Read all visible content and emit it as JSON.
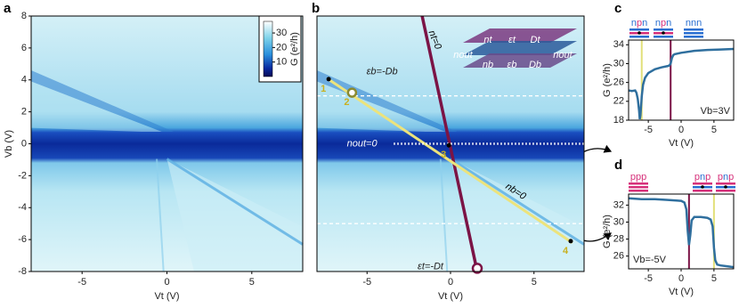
{
  "chart_data": [
    {
      "type": "heatmap",
      "panel": "a",
      "xlabel": "Vt (V)",
      "ylabel": "Vb (V)",
      "xlim": [
        -8,
        8
      ],
      "ylim": [
        -8,
        8
      ],
      "xticks": [
        -5,
        0,
        5
      ],
      "yticks": [
        -8,
        -6,
        -4,
        -2,
        0,
        2,
        4,
        6,
        8
      ],
      "colorbar": {
        "label": "G (e²/h)",
        "lim": [
          0,
          38
        ],
        "ticks": [
          10,
          20,
          30
        ]
      }
    },
    {
      "type": "heatmap",
      "panel": "b",
      "xlabel": "Vt (V)",
      "xlim": [
        -8,
        8
      ],
      "ylim": [
        -8,
        8
      ],
      "xticks": [
        -5,
        0,
        5
      ],
      "series": [
        {
          "name": "nt=0",
          "color": "#7b1446",
          "x": [
            -1.7,
            1.6
          ],
          "values": [
            8,
            -8
          ]
        },
        {
          "name": "nb=0",
          "color": "#ece37c",
          "x": [
            -7.4,
            7.3
          ],
          "values": [
            4.1,
            -6.2
          ]
        },
        {
          "name": "nout=0",
          "color": "#ffffff",
          "x": [
            -3.4,
            8
          ],
          "values": [
            0,
            0
          ]
        }
      ],
      "hlines": [
        3,
        -5
      ],
      "points": [
        {
          "label": "1",
          "x": -7.3,
          "y": 4.05,
          "marker": "dot"
        },
        {
          "label": "2",
          "x": -5.9,
          "y": 3.2,
          "marker": "ring"
        },
        {
          "label": "3",
          "x": -0.1,
          "y": -0.1,
          "marker": "dot"
        },
        {
          "label": "4",
          "x": 7.2,
          "y": -6.1,
          "marker": "dot"
        }
      ],
      "rings": [
        {
          "x": 1.6,
          "y": -7.8,
          "color": "#7b1446"
        }
      ],
      "annotations": [
        "εb=-Db",
        "εt=-Dt"
      ],
      "inset_labels": [
        "nt",
        "εt",
        "Dt",
        "nout",
        "nb",
        "εb",
        "Db",
        "nout"
      ]
    },
    {
      "type": "line",
      "panel": "c",
      "xlabel": "Vt (V)",
      "ylabel": "G (e²/h)",
      "xlim": [
        -8,
        8
      ],
      "ylim": [
        18,
        35
      ],
      "xticks": [
        -5,
        0,
        5
      ],
      "yticks": [
        18,
        22,
        26,
        30,
        34
      ],
      "annotation": "Vb=3V",
      "vlines": [
        {
          "x": -6.0,
          "color": "#e2e07a"
        },
        {
          "x": -1.6,
          "color": "#7b1446"
        }
      ],
      "series": [
        {
          "color": "#2f6f9e",
          "x": [
            -8,
            -7.5,
            -7,
            -6.8,
            -6.6,
            -6.4,
            -6.3,
            -6.2,
            -6.0,
            -5.8,
            -5.5,
            -5,
            -4,
            -3,
            -2,
            -1.8,
            -1.6,
            -1.4,
            -1.2,
            -1,
            0,
            2,
            4,
            6,
            8
          ],
          "values": [
            24.3,
            24.2,
            24.3,
            23.8,
            22.5,
            20,
            18.2,
            19,
            23,
            25.5,
            27,
            28,
            28.8,
            29.2,
            29.5,
            29.6,
            30,
            31.2,
            31.8,
            32,
            32.3,
            32.7,
            32.9,
            33,
            33.1
          ]
        }
      ],
      "icons": [
        "npn",
        "npn",
        "nnn"
      ]
    },
    {
      "type": "line",
      "panel": "d",
      "xlabel": "Vt (V)",
      "ylabel": "G (e²/h)",
      "xlim": [
        -8,
        8
      ],
      "ylim": [
        24.5,
        33.3
      ],
      "xticks": [
        -5,
        0,
        5
      ],
      "yticks": [
        26,
        28,
        30,
        32
      ],
      "annotation": "Vb=-5V",
      "vlines": [
        {
          "x": 1.2,
          "color": "#7b1446"
        },
        {
          "x": 5.0,
          "color": "#e2e07a"
        }
      ],
      "series": [
        {
          "color": "#2f6f9e",
          "x": [
            -8,
            -6,
            -4,
            -2,
            0,
            0.5,
            0.8,
            1.0,
            1.2,
            1.4,
            1.6,
            2,
            3,
            4,
            4.5,
            4.8,
            5.0,
            5.2,
            5.5,
            6,
            7,
            8
          ],
          "values": [
            32.8,
            32.7,
            32.7,
            32.6,
            32.5,
            32.3,
            31.5,
            29,
            27.3,
            28.5,
            30.2,
            30.6,
            30.6,
            30.5,
            30.3,
            29.5,
            27,
            25.5,
            25,
            24.9,
            24.8,
            24.7
          ]
        }
      ],
      "icons": [
        "ppp",
        "pnp",
        "pnp"
      ]
    }
  ]
}
